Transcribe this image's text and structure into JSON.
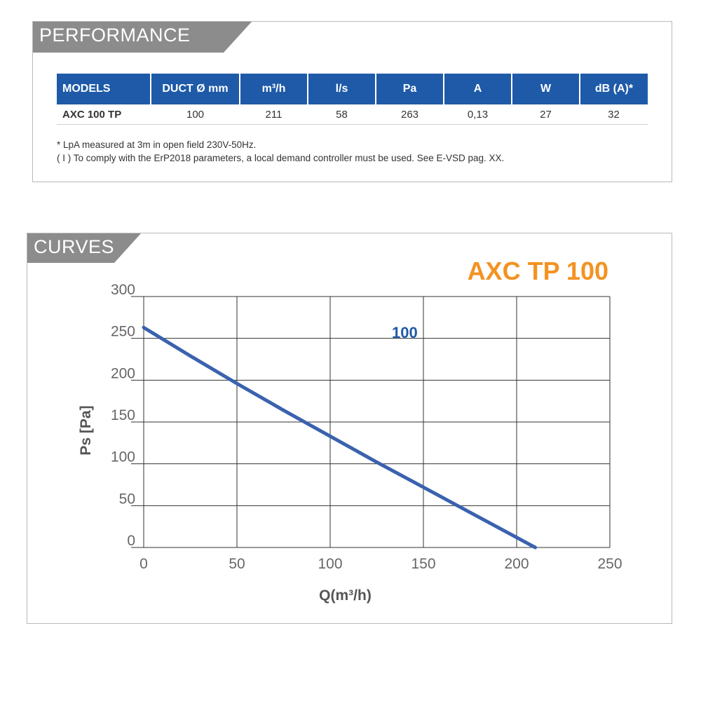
{
  "performance": {
    "title": "PERFORMANCE",
    "headers": [
      "MODELS",
      "DUCT Ø mm",
      "m³/h",
      "l/s",
      "Pa",
      "A",
      "W",
      "dB (A)*"
    ],
    "rows": [
      [
        "AXC 100 TP",
        "100",
        "211",
        "58",
        "263",
        "0,13",
        "27",
        "32"
      ]
    ],
    "notes": [
      "* LpA measured at 3m in open field 230V-50Hz.",
      "( I ) To comply with the ErP2018 parameters, a local demand controller must be used. See E-VSD pag. XX."
    ]
  },
  "curves": {
    "title": "CURVES"
  },
  "colors": {
    "header_tab": "#8c8c8c",
    "table_header": "#1e5aa8",
    "curve": "#3a62ae",
    "chart_title": "#f39322",
    "grid": "#333333"
  },
  "chart_data": {
    "type": "line",
    "title": "AXC TP 100",
    "xlabel": "Q(m³/h)",
    "ylabel": "Ps [Pa]",
    "xlim": [
      0,
      250
    ],
    "ylim": [
      0,
      300
    ],
    "x_ticks": [
      "0",
      "50",
      "100",
      "150",
      "200",
      "250"
    ],
    "y_ticks": [
      "0",
      "50",
      "100",
      "150",
      "200",
      "250",
      "300"
    ],
    "grid": true,
    "series": [
      {
        "name": "100",
        "x": [
          0,
          25,
          50,
          75,
          100,
          125,
          150,
          175,
          200,
          210
        ],
        "y": [
          263,
          229,
          196,
          164,
          133,
          102,
          72,
          42,
          12,
          0
        ]
      }
    ]
  }
}
